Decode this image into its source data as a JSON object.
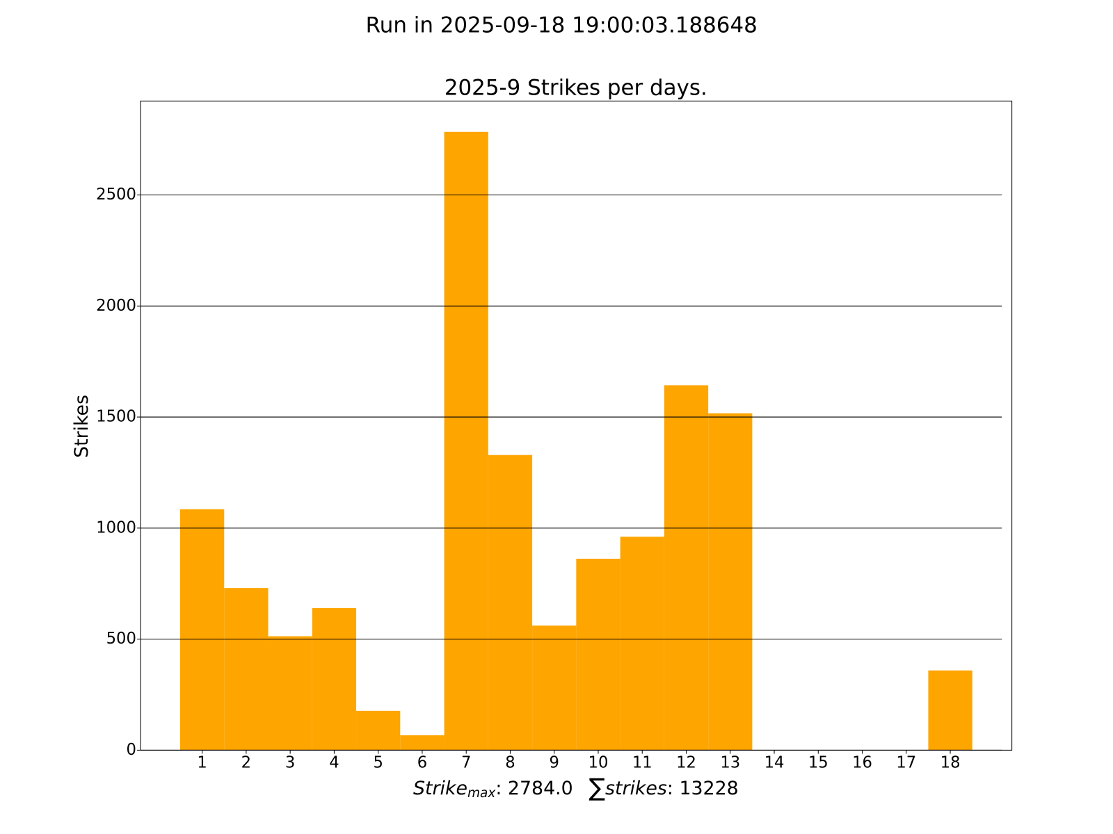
{
  "chart_data": {
    "type": "bar",
    "suptitle": "Run in 2025-09-18 19:00:03.188648",
    "title": "2025-9 Strikes per days.",
    "ylabel": "Strikes",
    "xlabel": {
      "max_label": "Strike",
      "max_sub": "max",
      "separator": ": ",
      "max_value": "2784.0",
      "sum_symbol": "∑",
      "sum_label": "strikes",
      "sum_value": "13228"
    },
    "x": [
      1,
      2,
      3,
      4,
      5,
      6,
      7,
      8,
      9,
      10,
      11,
      12,
      13,
      14,
      15,
      16,
      17,
      18
    ],
    "values": [
      1085,
      730,
      513,
      640,
      177,
      67,
      2784,
      1329,
      561,
      862,
      961,
      1643,
      1517,
      0,
      0,
      0,
      0,
      359
    ],
    "color": "#ffa500",
    "xlim": [
      -0.4,
      19.4
    ],
    "xticks": [
      1,
      2,
      3,
      4,
      5,
      6,
      7,
      8,
      9,
      10,
      11,
      12,
      13,
      14,
      15,
      16,
      17,
      18
    ],
    "ylim": [
      0,
      2923
    ],
    "yticks": [
      0,
      500,
      1000,
      1500,
      2000,
      2500
    ],
    "grid": true
  }
}
